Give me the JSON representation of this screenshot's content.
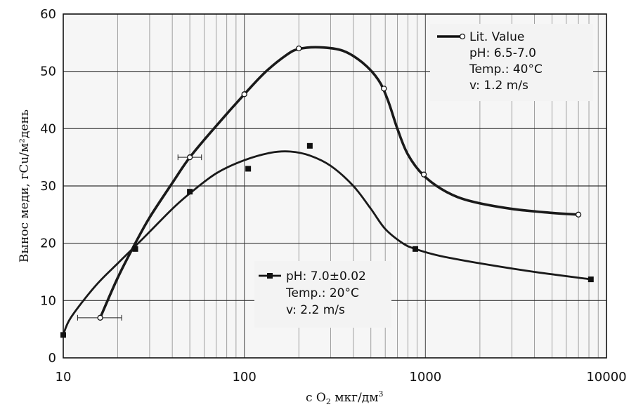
{
  "chart_data": {
    "type": "line",
    "xscale": "log",
    "xlim": [
      10,
      10000
    ],
    "ylim": [
      0,
      60
    ],
    "grid": true,
    "xlabel_parts": {
      "prefix": "c  O",
      "sub": "2",
      "unit": "  мкг/дм",
      "sup": "3"
    },
    "ylabel": "Вынос меди, гCu/м²день",
    "xticks": [
      {
        "value": 10,
        "label": "10"
      },
      {
        "value": 100,
        "label": "100"
      },
      {
        "value": 1000,
        "label": "1000"
      },
      {
        "value": 10000,
        "label": "10000"
      }
    ],
    "yticks": [
      {
        "value": 0,
        "label": "0"
      },
      {
        "value": 10,
        "label": "10"
      },
      {
        "value": 20,
        "label": "20"
      },
      {
        "value": 30,
        "label": "30"
      },
      {
        "value": 40,
        "label": "40"
      },
      {
        "value": 50,
        "label": "50"
      },
      {
        "value": 60,
        "label": "60"
      }
    ],
    "series": [
      {
        "marker": "open-circle",
        "legend_lines": [
          "Lit. Value",
          "pH: 6.5-7.0",
          "Temp.: 40°C",
          "v: 1.2 m/s"
        ],
        "legend_position": "top-right",
        "points": [
          {
            "x": 16,
            "y": 7,
            "xerr": [
              12,
              21
            ]
          },
          {
            "x": 50,
            "y": 35,
            "xerr": [
              43,
              58
            ]
          },
          {
            "x": 100,
            "y": 46
          },
          {
            "x": 200,
            "y": 54
          },
          {
            "x": 590,
            "y": 47
          },
          {
            "x": 980,
            "y": 32
          },
          {
            "x": 7000,
            "y": 25
          }
        ],
        "curve": [
          [
            16,
            7
          ],
          [
            20,
            14
          ],
          [
            25,
            20
          ],
          [
            30,
            24.5
          ],
          [
            40,
            30.5
          ],
          [
            50,
            35
          ],
          [
            70,
            40.5
          ],
          [
            100,
            46
          ],
          [
            130,
            49.8
          ],
          [
            170,
            52.8
          ],
          [
            200,
            53.9
          ],
          [
            260,
            54.2
          ],
          [
            350,
            53.6
          ],
          [
            450,
            51.5
          ],
          [
            550,
            48.5
          ],
          [
            620,
            45
          ],
          [
            700,
            40
          ],
          [
            800,
            35.5
          ],
          [
            980,
            31.8
          ],
          [
            1300,
            29
          ],
          [
            1800,
            27.3
          ],
          [
            3000,
            26
          ],
          [
            5000,
            25.3
          ],
          [
            7000,
            25
          ]
        ]
      },
      {
        "marker": "filled-square",
        "legend_lines": [
          "pH: 7.0±0.02",
          "Temp.: 20°C",
          "v: 2.2 m/s"
        ],
        "legend_position": "center",
        "points": [
          {
            "x": 10,
            "y": 4
          },
          {
            "x": 25,
            "y": 19
          },
          {
            "x": 50,
            "y": 29
          },
          {
            "x": 105,
            "y": 33
          },
          {
            "x": 230,
            "y": 37
          },
          {
            "x": 880,
            "y": 19
          },
          {
            "x": 8200,
            "y": 13.7
          }
        ],
        "curve": [
          [
            10,
            4
          ],
          [
            11,
            7
          ],
          [
            15,
            12.5
          ],
          [
            20,
            16.5
          ],
          [
            25,
            19.5
          ],
          [
            30,
            22
          ],
          [
            40,
            26
          ],
          [
            50,
            28.7
          ],
          [
            70,
            32.2
          ],
          [
            100,
            34.5
          ],
          [
            140,
            35.8
          ],
          [
            180,
            36
          ],
          [
            230,
            35.3
          ],
          [
            300,
            33.5
          ],
          [
            400,
            30
          ],
          [
            500,
            26
          ],
          [
            600,
            22.5
          ],
          [
            750,
            20
          ],
          [
            880,
            19
          ],
          [
            1200,
            17.8
          ],
          [
            2000,
            16.5
          ],
          [
            4000,
            15
          ],
          [
            8200,
            13.7
          ]
        ]
      }
    ]
  }
}
